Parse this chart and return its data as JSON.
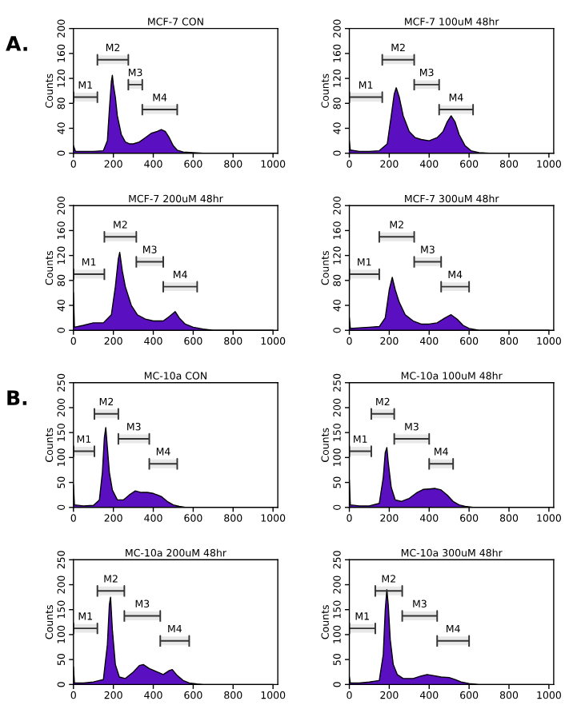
{
  "chart_data": [
    {
      "type": "area",
      "title": "MCF-7 CON",
      "ylabel": "Counts",
      "annotations": [
        "A."
      ],
      "color": "#5a10c0",
      "xlim": [
        0,
        1024
      ],
      "ylim": [
        0,
        200
      ],
      "xticks": [
        0,
        200,
        400,
        600,
        800,
        1000
      ],
      "yticks": [
        0,
        40,
        80,
        120,
        160,
        200
      ],
      "x": [
        0,
        10,
        50,
        100,
        150,
        170,
        180,
        190,
        195,
        200,
        210,
        220,
        240,
        260,
        280,
        300,
        330,
        360,
        390,
        420,
        440,
        460,
        480,
        500,
        520,
        550,
        600,
        650,
        1000
      ],
      "values": [
        12,
        3,
        3,
        3,
        4,
        20,
        70,
        115,
        125,
        110,
        90,
        60,
        30,
        18,
        15,
        15,
        18,
        25,
        32,
        35,
        38,
        35,
        25,
        12,
        5,
        2,
        1,
        0,
        0
      ],
      "bands": [
        {
          "axis": "x",
          "from": 0,
          "to": 120,
          "label": "M1"
        },
        {
          "axis": "x",
          "from": 120,
          "to": 275,
          "label": "M2"
        },
        {
          "axis": "x",
          "from": 275,
          "to": 345,
          "label": "M3"
        },
        {
          "axis": "x",
          "from": 345,
          "to": 520,
          "label": "M4"
        }
      ]
    },
    {
      "type": "area",
      "title": "MCF-7 100uM 48hr",
      "ylabel": "Counts",
      "color": "#5a10c0",
      "xlim": [
        0,
        1024
      ],
      "ylim": [
        0,
        200
      ],
      "xticks": [
        0,
        200,
        400,
        600,
        800,
        1000
      ],
      "yticks": [
        0,
        40,
        80,
        120,
        160,
        200
      ],
      "x": [
        0,
        5,
        50,
        100,
        150,
        190,
        210,
        225,
        235,
        250,
        270,
        300,
        330,
        360,
        400,
        440,
        470,
        490,
        510,
        530,
        550,
        580,
        610,
        650,
        700,
        1000
      ],
      "values": [
        20,
        5,
        3,
        3,
        4,
        15,
        60,
        95,
        105,
        90,
        60,
        35,
        25,
        22,
        20,
        25,
        35,
        50,
        60,
        50,
        30,
        12,
        4,
        1,
        0,
        0
      ],
      "bands": [
        {
          "axis": "x",
          "from": 0,
          "to": 165,
          "label": "M1"
        },
        {
          "axis": "x",
          "from": 165,
          "to": 325,
          "label": "M2"
        },
        {
          "axis": "x",
          "from": 325,
          "to": 450,
          "label": "M3"
        },
        {
          "axis": "x",
          "from": 450,
          "to": 620,
          "label": "M4"
        }
      ]
    },
    {
      "type": "area",
      "title": "MCF-7 200uM 48hr",
      "ylabel": "Counts",
      "color": "#5a10c0",
      "xlim": [
        0,
        1024
      ],
      "ylim": [
        0,
        200
      ],
      "xticks": [
        0,
        200,
        400,
        600,
        800,
        1000
      ],
      "yticks": [
        0,
        40,
        80,
        120,
        160,
        200
      ],
      "x": [
        0,
        5,
        50,
        100,
        150,
        190,
        210,
        225,
        232,
        245,
        260,
        290,
        320,
        360,
        400,
        450,
        480,
        510,
        530,
        560,
        600,
        650,
        700,
        1000
      ],
      "values": [
        60,
        5,
        8,
        12,
        12,
        25,
        70,
        115,
        125,
        95,
        70,
        40,
        25,
        18,
        15,
        15,
        22,
        30,
        20,
        10,
        5,
        2,
        0,
        0
      ],
      "bands": [
        {
          "axis": "x",
          "from": 0,
          "to": 155,
          "label": "M1"
        },
        {
          "axis": "x",
          "from": 155,
          "to": 315,
          "label": "M2"
        },
        {
          "axis": "x",
          "from": 315,
          "to": 450,
          "label": "M3"
        },
        {
          "axis": "x",
          "from": 450,
          "to": 620,
          "label": "M4"
        }
      ]
    },
    {
      "type": "area",
      "title": "MCF-7 300uM 48hr",
      "ylabel": "Counts",
      "color": "#5a10c0",
      "xlim": [
        0,
        1024
      ],
      "ylim": [
        0,
        200
      ],
      "xticks": [
        0,
        200,
        400,
        600,
        800,
        1000
      ],
      "yticks": [
        0,
        40,
        80,
        120,
        160,
        200
      ],
      "x": [
        0,
        5,
        50,
        100,
        150,
        180,
        200,
        215,
        230,
        250,
        280,
        320,
        360,
        400,
        440,
        480,
        510,
        540,
        570,
        600,
        650,
        1000
      ],
      "values": [
        20,
        3,
        4,
        5,
        6,
        20,
        65,
        85,
        65,
        45,
        25,
        15,
        10,
        10,
        12,
        20,
        25,
        18,
        8,
        3,
        0,
        0
      ],
      "bands": [
        {
          "axis": "x",
          "from": 0,
          "to": 150,
          "label": "M1"
        },
        {
          "axis": "x",
          "from": 150,
          "to": 325,
          "label": "M2"
        },
        {
          "axis": "x",
          "from": 325,
          "to": 460,
          "label": "M3"
        },
        {
          "axis": "x",
          "from": 460,
          "to": 600,
          "label": "M4"
        }
      ]
    },
    {
      "type": "area",
      "title": "MC-10a CON",
      "ylabel": "Counts",
      "annotations": [
        "B."
      ],
      "color": "#5a10c0",
      "xlim": [
        0,
        1024
      ],
      "ylim": [
        0,
        250
      ],
      "xticks": [
        0,
        200,
        400,
        600,
        800,
        1000
      ],
      "yticks": [
        0,
        50,
        100,
        150,
        200,
        250
      ],
      "x": [
        0,
        5,
        50,
        100,
        130,
        145,
        155,
        162,
        170,
        180,
        195,
        220,
        250,
        280,
        310,
        340,
        370,
        400,
        420,
        440,
        470,
        500,
        530,
        560,
        1000
      ],
      "values": [
        45,
        5,
        3,
        4,
        15,
        70,
        140,
        160,
        120,
        70,
        35,
        15,
        15,
        25,
        33,
        30,
        30,
        28,
        25,
        22,
        12,
        5,
        2,
        0,
        0
      ],
      "bands": [
        {
          "axis": "x",
          "from": 0,
          "to": 105,
          "label": "M1"
        },
        {
          "axis": "x",
          "from": 105,
          "to": 225,
          "label": "M2"
        },
        {
          "axis": "x",
          "from": 225,
          "to": 380,
          "label": "M3"
        },
        {
          "axis": "x",
          "from": 380,
          "to": 520,
          "label": "M4"
        }
      ]
    },
    {
      "type": "area",
      "title": "MC-10a 100uM 48hr",
      "ylabel": "Counts",
      "color": "#5a10c0",
      "xlim": [
        0,
        1024
      ],
      "ylim": [
        0,
        250
      ],
      "xticks": [
        0,
        200,
        400,
        600,
        800,
        1000
      ],
      "yticks": [
        0,
        50,
        100,
        150,
        200,
        250
      ],
      "x": [
        0,
        5,
        50,
        100,
        150,
        170,
        180,
        188,
        195,
        210,
        230,
        260,
        300,
        340,
        370,
        400,
        430,
        460,
        490,
        520,
        550,
        580,
        620,
        1000
      ],
      "values": [
        55,
        5,
        3,
        3,
        8,
        60,
        110,
        120,
        90,
        40,
        15,
        12,
        18,
        30,
        36,
        37,
        38,
        35,
        25,
        12,
        5,
        2,
        0,
        0
      ],
      "bands": [
        {
          "axis": "x",
          "from": 0,
          "to": 110,
          "label": "M1"
        },
        {
          "axis": "x",
          "from": 110,
          "to": 225,
          "label": "M2"
        },
        {
          "axis": "x",
          "from": 225,
          "to": 400,
          "label": "M3"
        },
        {
          "axis": "x",
          "from": 400,
          "to": 520,
          "label": "M4"
        }
      ]
    },
    {
      "type": "area",
      "title": "MC-10a 200uM 48hr",
      "ylabel": "Counts",
      "color": "#5a10c0",
      "xlim": [
        0,
        1024
      ],
      "ylim": [
        0,
        250
      ],
      "xticks": [
        0,
        200,
        400,
        600,
        800,
        1000
      ],
      "yticks": [
        0,
        50,
        100,
        150,
        200,
        250
      ],
      "x": [
        0,
        5,
        50,
        100,
        150,
        170,
        180,
        186,
        195,
        210,
        230,
        260,
        300,
        330,
        350,
        380,
        420,
        450,
        480,
        495,
        520,
        550,
        580,
        620,
        650,
        1000
      ],
      "values": [
        35,
        3,
        3,
        5,
        10,
        80,
        160,
        175,
        110,
        40,
        15,
        12,
        25,
        38,
        40,
        32,
        25,
        20,
        28,
        30,
        18,
        8,
        3,
        1,
        0,
        0
      ],
      "bands": [
        {
          "axis": "x",
          "from": 0,
          "to": 120,
          "label": "M1"
        },
        {
          "axis": "x",
          "from": 120,
          "to": 255,
          "label": "M2"
        },
        {
          "axis": "x",
          "from": 255,
          "to": 435,
          "label": "M3"
        },
        {
          "axis": "x",
          "from": 435,
          "to": 580,
          "label": "M4"
        }
      ]
    },
    {
      "type": "area",
      "title": "MC-10a 300uM 48hr",
      "ylabel": "Counts",
      "color": "#5a10c0",
      "xlim": [
        0,
        1024
      ],
      "ylim": [
        0,
        250
      ],
      "xticks": [
        0,
        200,
        400,
        600,
        800,
        1000
      ],
      "yticks": [
        0,
        50,
        100,
        150,
        200,
        250
      ],
      "x": [
        0,
        5,
        50,
        100,
        150,
        170,
        180,
        188,
        195,
        205,
        220,
        240,
        270,
        320,
        360,
        390,
        420,
        460,
        500,
        530,
        560,
        600,
        650,
        1000
      ],
      "values": [
        15,
        3,
        3,
        5,
        8,
        60,
        150,
        190,
        160,
        90,
        40,
        20,
        12,
        12,
        17,
        20,
        18,
        15,
        14,
        10,
        5,
        2,
        0,
        0
      ],
      "bands": [
        {
          "axis": "x",
          "from": 0,
          "to": 130,
          "label": "M1"
        },
        {
          "axis": "x",
          "from": 130,
          "to": 265,
          "label": "M2"
        },
        {
          "axis": "x",
          "from": 265,
          "to": 440,
          "label": "M3"
        },
        {
          "axis": "x",
          "from": 440,
          "to": 600,
          "label": "M4"
        }
      ]
    }
  ]
}
